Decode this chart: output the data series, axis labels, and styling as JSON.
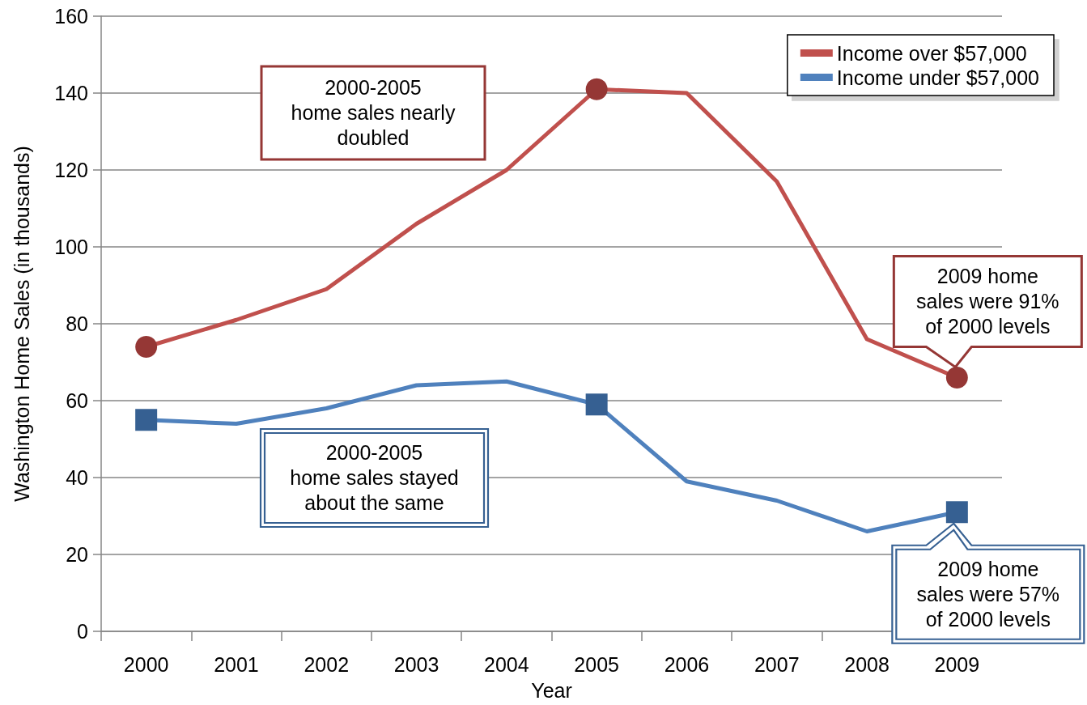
{
  "chart_data": {
    "type": "line",
    "xlabel": "Year",
    "ylabel": "Washington Home Sales (in thousands)",
    "categories": [
      "2000",
      "2001",
      "2002",
      "2003",
      "2004",
      "2005",
      "2006",
      "2007",
      "2008",
      "2009"
    ],
    "series": [
      {
        "name": "Income over $57,000",
        "color": "#c0504d",
        "values": [
          74,
          81,
          89,
          106,
          120,
          141,
          140,
          117,
          76,
          66
        ],
        "marker": "none"
      },
      {
        "name": "Income under $57,000",
        "color": "#4f81bd",
        "values": [
          55,
          54,
          58,
          64,
          65,
          59,
          39,
          34,
          26,
          31
        ],
        "marker": "none"
      },
      {
        "type": "scatter",
        "color": "#953735",
        "values": [
          74,
          null,
          null,
          null,
          null,
          141,
          null,
          null,
          null,
          66
        ],
        "marker": "circle"
      },
      {
        "type": "scatter",
        "color": "#366092",
        "values": [
          55,
          null,
          null,
          null,
          null,
          59,
          null,
          null,
          null,
          31
        ],
        "marker": "square"
      }
    ],
    "ylim": [
      0,
      160
    ],
    "yticks": [
      0,
      20,
      40,
      60,
      80,
      100,
      120,
      140,
      160
    ],
    "grid": "y",
    "legend": "top right",
    "line_style": "solid",
    "annotations": [
      "2000-2005\nhome sales nearly\ndoubled",
      "2000-2005\nhome sales stayed\nabout the same",
      {
        "text": "2009 home\nsales were 91%\nof 2000 levels",
        "x": "2009",
        "y": 66
      },
      {
        "text": "2009 home\nsales were 57%\nof 2000 levels",
        "x": "2009",
        "y": 31
      }
    ]
  }
}
